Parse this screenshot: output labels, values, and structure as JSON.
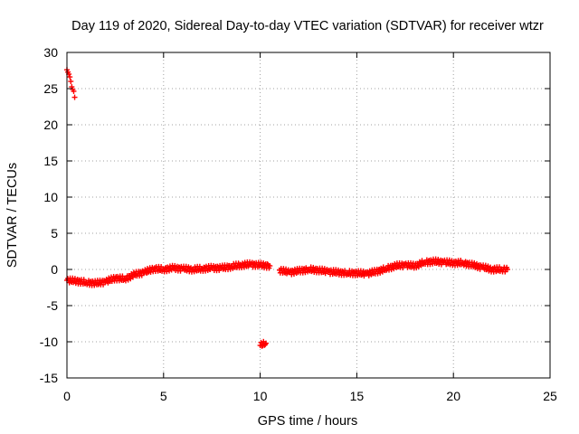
{
  "chart_data": {
    "type": "scatter",
    "title": "Day 119 of 2020, Sidereal Day-to-day VTEC variation (SDTVAR) for receiver wtzr",
    "xlabel": "GPS time / hours",
    "ylabel": "SDTVAR / TECUs",
    "xlim": [
      0,
      25
    ],
    "ylim": [
      -15,
      30
    ],
    "xticks": [
      0,
      5,
      10,
      15,
      20,
      25
    ],
    "yticks": [
      30,
      25,
      20,
      15,
      10,
      5,
      0,
      -5,
      -10,
      -15
    ],
    "grid": true,
    "marker_color": "#ff0000",
    "series": [
      {
        "name": "wtzr",
        "points": [
          [
            0.0,
            27.6
          ],
          [
            0.1,
            27.0
          ],
          [
            0.2,
            26.0
          ],
          [
            0.3,
            24.9
          ],
          [
            0.4,
            23.8
          ],
          [
            0.0,
            -1.5
          ],
          [
            0.5,
            -1.6
          ],
          [
            1.0,
            -1.8
          ],
          [
            1.5,
            -1.9
          ],
          [
            2.0,
            -1.7
          ],
          [
            2.5,
            -1.2
          ],
          [
            3.0,
            -1.3
          ],
          [
            3.5,
            -0.7
          ],
          [
            4.0,
            -0.4
          ],
          [
            4.5,
            0.1
          ],
          [
            5.0,
            0.0
          ],
          [
            5.5,
            0.2
          ],
          [
            6.0,
            0.1
          ],
          [
            6.5,
            0.0
          ],
          [
            7.0,
            0.1
          ],
          [
            7.5,
            0.2
          ],
          [
            8.0,
            0.2
          ],
          [
            8.5,
            0.4
          ],
          [
            9.0,
            0.6
          ],
          [
            9.5,
            0.7
          ],
          [
            10.0,
            0.6
          ],
          [
            10.5,
            0.5
          ],
          [
            10.0,
            -10.5
          ],
          [
            10.3,
            -10.2
          ],
          [
            11.0,
            -0.1
          ],
          [
            11.5,
            -0.4
          ],
          [
            12.0,
            -0.2
          ],
          [
            12.5,
            0.0
          ],
          [
            13.0,
            -0.1
          ],
          [
            13.5,
            -0.3
          ],
          [
            14.0,
            -0.4
          ],
          [
            14.5,
            -0.5
          ],
          [
            15.0,
            -0.5
          ],
          [
            15.5,
            -0.6
          ],
          [
            16.0,
            -0.3
          ],
          [
            16.5,
            0.1
          ],
          [
            17.0,
            0.5
          ],
          [
            17.5,
            0.6
          ],
          [
            18.0,
            0.5
          ],
          [
            18.5,
            1.0
          ],
          [
            19.0,
            1.1
          ],
          [
            19.5,
            1.0
          ],
          [
            20.0,
            0.9
          ],
          [
            20.5,
            0.9
          ],
          [
            21.0,
            0.6
          ],
          [
            21.5,
            0.3
          ],
          [
            22.0,
            0.0
          ],
          [
            22.5,
            0.0
          ],
          [
            22.8,
            0.0
          ]
        ]
      }
    ]
  }
}
